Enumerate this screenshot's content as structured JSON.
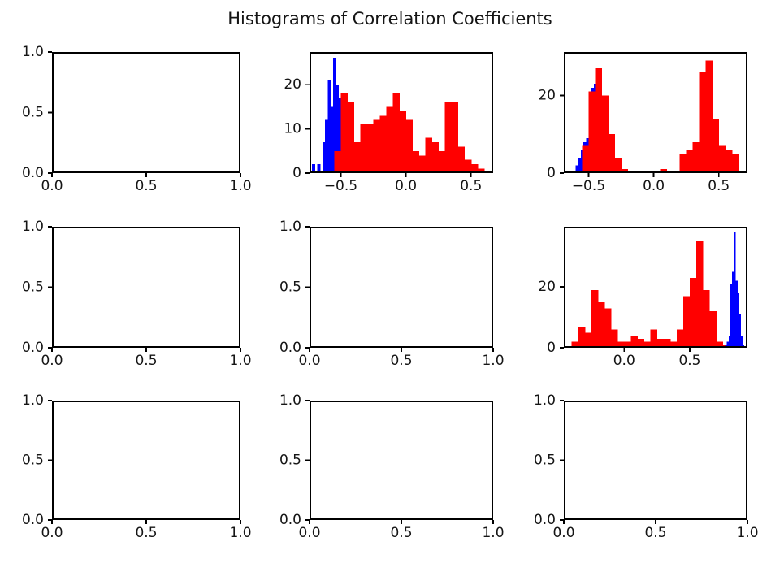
{
  "figure": {
    "suptitle": "Histograms of Correlation Coefficients",
    "background_color": "#ffffff",
    "text_color": "#151515",
    "axis_color": "#000000",
    "series_colors": {
      "blue": "#0000ff",
      "red": "#ff0000"
    }
  },
  "chart_data": [
    {
      "name": "subplot-0-0",
      "type": "histogram",
      "title": "",
      "xlim": [
        0,
        1
      ],
      "ylim": [
        0,
        1
      ],
      "xticks": [
        0,
        0.5,
        1
      ],
      "xtick_labels": [
        "0.0",
        "0.5",
        "1.0"
      ],
      "yticks": [
        0,
        0.5,
        1
      ],
      "ytick_labels": [
        "0.0",
        "0.5",
        "1.0"
      ],
      "grid": false,
      "series": []
    },
    {
      "name": "subplot-0-1",
      "type": "histogram",
      "title": "",
      "xlim": [
        -0.74,
        0.67
      ],
      "ylim": [
        0,
        27.4
      ],
      "xticks": [
        -0.5,
        0,
        0.5
      ],
      "xtick_labels": [
        "−0.5",
        "0.0",
        "0.5"
      ],
      "yticks": [
        0,
        10,
        20
      ],
      "ytick_labels": [
        "0",
        "10",
        "20"
      ],
      "grid": false,
      "series": [
        {
          "name": "blue",
          "color": "#0000ff",
          "bin_start": -0.72,
          "bin_width": 0.02,
          "counts": [
            2,
            0,
            2,
            0,
            7,
            12,
            21,
            15,
            26,
            20,
            17,
            15,
            8,
            3
          ]
        },
        {
          "name": "red",
          "color": "#ff0000",
          "bin_start": -0.55,
          "bin_width": 0.05,
          "counts": [
            5,
            18,
            16,
            7,
            11,
            11,
            12,
            13,
            15,
            18,
            14,
            12,
            5,
            4,
            8,
            7,
            5,
            16,
            16,
            6,
            3,
            2,
            1
          ]
        }
      ]
    },
    {
      "name": "subplot-0-2",
      "type": "histogram",
      "title": "",
      "xlim": [
        -0.69,
        0.72
      ],
      "ylim": [
        0,
        31.2
      ],
      "xticks": [
        -0.5,
        0,
        0.5
      ],
      "xtick_labels": [
        "−0.5",
        "0.0",
        "0.5"
      ],
      "yticks": [
        0,
        20
      ],
      "ytick_labels": [
        "0",
        "20"
      ],
      "grid": false,
      "series": [
        {
          "name": "blue",
          "color": "#0000ff",
          "bin_start": -0.6,
          "bin_width": 0.02,
          "counts": [
            2,
            4,
            6,
            8,
            9,
            15,
            22,
            23,
            10,
            3
          ]
        },
        {
          "name": "red",
          "color": "#ff0000",
          "bin_start": -0.55,
          "bin_width": 0.05,
          "counts": [
            7,
            21,
            27,
            20,
            10,
            4,
            1,
            0,
            0,
            0,
            0,
            0,
            1,
            0,
            0,
            5,
            6,
            8,
            26,
            29,
            14,
            7,
            6,
            5
          ]
        }
      ]
    },
    {
      "name": "subplot-1-0",
      "type": "histogram",
      "title": "",
      "xlim": [
        0,
        1
      ],
      "ylim": [
        0,
        1
      ],
      "xticks": [
        0,
        0.5,
        1
      ],
      "xtick_labels": [
        "0.0",
        "0.5",
        "1.0"
      ],
      "yticks": [
        0,
        0.5,
        1
      ],
      "ytick_labels": [
        "0.0",
        "0.5",
        "1.0"
      ],
      "grid": false,
      "series": []
    },
    {
      "name": "subplot-1-1",
      "type": "histogram",
      "title": "",
      "xlim": [
        0,
        1
      ],
      "ylim": [
        0,
        1
      ],
      "xticks": [
        0,
        0.5,
        1
      ],
      "xtick_labels": [
        "0.0",
        "0.5",
        "1.0"
      ],
      "yticks": [
        0,
        0.5,
        1
      ],
      "ytick_labels": [
        "0.0",
        "0.5",
        "1.0"
      ],
      "grid": false,
      "series": []
    },
    {
      "name": "subplot-1-2",
      "type": "histogram",
      "title": "",
      "xlim": [
        -0.46,
        0.94
      ],
      "ylim": [
        0,
        39.8
      ],
      "xticks": [
        0,
        0.5
      ],
      "xtick_labels": [
        "0.0",
        "0.5"
      ],
      "yticks": [
        0,
        20
      ],
      "ytick_labels": [
        "0",
        "20"
      ],
      "grid": false,
      "series": [
        {
          "name": "red",
          "color": "#ff0000",
          "bin_start": -0.4,
          "bin_width": 0.05,
          "counts": [
            2,
            7,
            5,
            19,
            15,
            13,
            6,
            2,
            2,
            4,
            3,
            2,
            6,
            3,
            3,
            2,
            6,
            17,
            23,
            35,
            19,
            12,
            2,
            1,
            1,
            1
          ]
        },
        {
          "name": "blue",
          "color": "#0000ff",
          "bin_start": 0.77,
          "bin_width": 0.013,
          "counts": [
            1,
            2,
            4,
            21,
            25,
            38,
            22,
            18,
            11,
            4,
            1
          ]
        }
      ]
    },
    {
      "name": "subplot-2-0",
      "type": "histogram",
      "title": "",
      "xlim": [
        0,
        1
      ],
      "ylim": [
        0,
        1
      ],
      "xticks": [
        0,
        0.5,
        1
      ],
      "xtick_labels": [
        "0.0",
        "0.5",
        "1.0"
      ],
      "yticks": [
        0,
        0.5,
        1
      ],
      "ytick_labels": [
        "0.0",
        "0.5",
        "1.0"
      ],
      "grid": false,
      "series": []
    },
    {
      "name": "subplot-2-1",
      "type": "histogram",
      "title": "",
      "xlim": [
        0,
        1
      ],
      "ylim": [
        0,
        1
      ],
      "xticks": [
        0,
        0.5,
        1
      ],
      "xtick_labels": [
        "0.0",
        "0.5",
        "1.0"
      ],
      "yticks": [
        0,
        0.5,
        1
      ],
      "ytick_labels": [
        "0.0",
        "0.5",
        "1.0"
      ],
      "grid": false,
      "series": []
    },
    {
      "name": "subplot-2-2",
      "type": "histogram",
      "title": "",
      "xlim": [
        0,
        1
      ],
      "ylim": [
        0,
        1
      ],
      "xticks": [
        0,
        0.5,
        1
      ],
      "xtick_labels": [
        "0.0",
        "0.5",
        "1.0"
      ],
      "yticks": [
        0,
        0.5,
        1
      ],
      "ytick_labels": [
        "0.0",
        "0.5",
        "1.0"
      ],
      "grid": false,
      "series": []
    }
  ]
}
